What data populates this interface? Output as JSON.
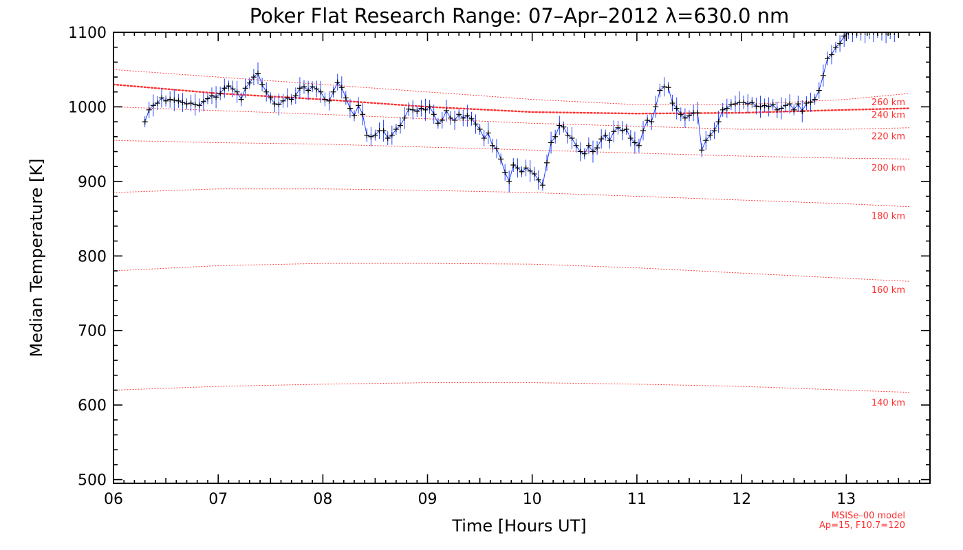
{
  "chart_data": {
    "type": "line",
    "title": "Poker Flat Research Range: 07–Apr–2012 λ=630.0 nm",
    "xlabel": "Time [Hours UT]",
    "ylabel": "Median Temperature [K]",
    "xlim": [
      6.0,
      13.8
    ],
    "ylim": [
      495,
      1100
    ],
    "x_ticks": [
      6,
      7,
      8,
      9,
      10,
      11,
      12,
      13
    ],
    "x_tick_labels": [
      "06",
      "07",
      "08",
      "09",
      "10",
      "11",
      "12",
      "13"
    ],
    "y_ticks": [
      500,
      600,
      700,
      800,
      900,
      1000,
      1100
    ],
    "y_tick_labels": [
      "500",
      "600",
      "700",
      "800",
      "900",
      "1000",
      "1100"
    ],
    "grid": false,
    "colors": {
      "data_line": "#2040ff",
      "markers": "#000000",
      "model": "#ff3030"
    },
    "series": [
      {
        "name": "",
        "points": [
          [
            6.3,
            980
          ],
          [
            6.34,
            996
          ],
          [
            6.38,
            1002
          ],
          [
            6.42,
            1005
          ],
          [
            6.46,
            1012
          ],
          [
            6.5,
            1008
          ],
          [
            6.54,
            1010
          ],
          [
            6.58,
            1009
          ],
          [
            6.62,
            1008
          ],
          [
            6.66,
            1006
          ],
          [
            6.7,
            1004
          ],
          [
            6.74,
            1005
          ],
          [
            6.78,
            1003
          ],
          [
            6.82,
            1002
          ],
          [
            6.86,
            1007
          ],
          [
            6.9,
            1011
          ],
          [
            6.94,
            1015
          ],
          [
            6.98,
            1013
          ],
          [
            7.02,
            1018
          ],
          [
            7.06,
            1025
          ],
          [
            7.1,
            1028
          ],
          [
            7.14,
            1024
          ],
          [
            7.18,
            1020
          ],
          [
            7.22,
            1010
          ],
          [
            7.26,
            1025
          ],
          [
            7.3,
            1032
          ],
          [
            7.34,
            1040
          ],
          [
            7.38,
            1045
          ],
          [
            7.42,
            1030
          ],
          [
            7.46,
            1020
          ],
          [
            7.5,
            1012
          ],
          [
            7.54,
            1004
          ],
          [
            7.58,
            1003
          ],
          [
            7.62,
            1008
          ],
          [
            7.66,
            1012
          ],
          [
            7.7,
            1010
          ],
          [
            7.74,
            1015
          ],
          [
            7.78,
            1025
          ],
          [
            7.82,
            1027
          ],
          [
            7.86,
            1022
          ],
          [
            7.9,
            1027
          ],
          [
            7.94,
            1024
          ],
          [
            7.98,
            1020
          ],
          [
            8.02,
            1010
          ],
          [
            8.06,
            1008
          ],
          [
            8.1,
            1020
          ],
          [
            8.14,
            1033
          ],
          [
            8.18,
            1026
          ],
          [
            8.22,
            1012
          ],
          [
            8.26,
            998
          ],
          [
            8.3,
            988
          ],
          [
            8.34,
            1002
          ],
          [
            8.38,
            990
          ],
          [
            8.42,
            962
          ],
          [
            8.46,
            960
          ],
          [
            8.5,
            962
          ],
          [
            8.54,
            968
          ],
          [
            8.58,
            968
          ],
          [
            8.62,
            958
          ],
          [
            8.66,
            962
          ],
          [
            8.7,
            970
          ],
          [
            8.74,
            975
          ],
          [
            8.78,
            985
          ],
          [
            8.82,
            997
          ],
          [
            8.86,
            996
          ],
          [
            8.9,
            994
          ],
          [
            8.94,
            998
          ],
          [
            8.98,
            996
          ],
          [
            9.02,
            1000
          ],
          [
            9.06,
            990
          ],
          [
            9.1,
            978
          ],
          [
            9.14,
            982
          ],
          [
            9.18,
            995
          ],
          [
            9.22,
            985
          ],
          [
            9.26,
            982
          ],
          [
            9.3,
            990
          ],
          [
            9.34,
            985
          ],
          [
            9.38,
            988
          ],
          [
            9.42,
            984
          ],
          [
            9.46,
            977
          ],
          [
            9.5,
            970
          ],
          [
            9.54,
            958
          ],
          [
            9.58,
            965
          ],
          [
            9.62,
            948
          ],
          [
            9.66,
            944
          ],
          [
            9.7,
            930
          ],
          [
            9.74,
            912
          ],
          [
            9.78,
            900
          ],
          [
            9.82,
            922
          ],
          [
            9.86,
            918
          ],
          [
            9.9,
            913
          ],
          [
            9.94,
            918
          ],
          [
            9.98,
            914
          ],
          [
            10.02,
            910
          ],
          [
            10.06,
            902
          ],
          [
            10.1,
            895
          ],
          [
            10.14,
            925
          ],
          [
            10.18,
            952
          ],
          [
            10.22,
            960
          ],
          [
            10.26,
            975
          ],
          [
            10.3,
            973
          ],
          [
            10.34,
            962
          ],
          [
            10.38,
            958
          ],
          [
            10.42,
            948
          ],
          [
            10.46,
            940
          ],
          [
            10.5,
            937
          ],
          [
            10.54,
            948
          ],
          [
            10.58,
            940
          ],
          [
            10.62,
            945
          ],
          [
            10.66,
            957
          ],
          [
            10.7,
            962
          ],
          [
            10.74,
            955
          ],
          [
            10.78,
            967
          ],
          [
            10.82,
            972
          ],
          [
            10.86,
            968
          ],
          [
            10.9,
            970
          ],
          [
            10.94,
            958
          ],
          [
            10.98,
            952
          ],
          [
            11.02,
            948
          ],
          [
            11.06,
            968
          ],
          [
            11.1,
            982
          ],
          [
            11.14,
            980
          ],
          [
            11.18,
            1000
          ],
          [
            11.22,
            1022
          ],
          [
            11.26,
            1027
          ],
          [
            11.3,
            1026
          ],
          [
            11.34,
            1005
          ],
          [
            11.38,
            998
          ],
          [
            11.42,
            990
          ],
          [
            11.46,
            985
          ],
          [
            11.5,
            988
          ],
          [
            11.54,
            992
          ],
          [
            11.58,
            992
          ],
          [
            11.62,
            942
          ],
          [
            11.66,
            955
          ],
          [
            11.7,
            962
          ],
          [
            11.74,
            968
          ],
          [
            11.78,
            980
          ],
          [
            11.82,
            996
          ],
          [
            11.86,
            998
          ],
          [
            11.9,
            1003
          ],
          [
            11.94,
            1004
          ],
          [
            11.98,
            1006
          ],
          [
            12.02,
            1006
          ],
          [
            12.06,
            1004
          ],
          [
            12.1,
            1006
          ],
          [
            12.14,
            1001
          ],
          [
            12.18,
            1000
          ],
          [
            12.22,
            1002
          ],
          [
            12.26,
            1000
          ],
          [
            12.3,
            1003
          ],
          [
            12.34,
            996
          ],
          [
            12.38,
            998
          ],
          [
            12.42,
            1002
          ],
          [
            12.46,
            1004
          ],
          [
            12.5,
            996
          ],
          [
            12.54,
            1004
          ],
          [
            12.58,
            994
          ],
          [
            12.62,
            1005
          ],
          [
            12.66,
            1006
          ],
          [
            12.7,
            1010
          ],
          [
            12.74,
            1022
          ],
          [
            12.78,
            1042
          ],
          [
            12.82,
            1065
          ],
          [
            12.86,
            1070
          ],
          [
            12.9,
            1080
          ],
          [
            12.94,
            1085
          ],
          [
            12.98,
            1095
          ],
          [
            13.02,
            1100
          ],
          [
            13.06,
            1100
          ],
          [
            13.1,
            1100
          ],
          [
            13.14,
            1100
          ],
          [
            13.18,
            1100
          ],
          [
            13.22,
            1100
          ],
          [
            13.26,
            1100
          ],
          [
            13.3,
            1100
          ],
          [
            13.34,
            1100
          ],
          [
            13.38,
            1100
          ],
          [
            13.42,
            1100
          ],
          [
            13.46,
            1100
          ],
          [
            13.5,
            1100
          ]
        ]
      }
    ],
    "model_curves": [
      {
        "label": "260 km",
        "thick": true,
        "points": [
          [
            6.0,
            1030
          ],
          [
            7.0,
            1018
          ],
          [
            8.0,
            1010
          ],
          [
            9.0,
            1000
          ],
          [
            10.0,
            993
          ],
          [
            11.0,
            991
          ],
          [
            12.0,
            992
          ],
          [
            12.5,
            994
          ],
          [
            13.0,
            996
          ],
          [
            13.6,
            998
          ]
        ]
      },
      {
        "label": "240 km",
        "thick": false,
        "points": [
          [
            6.0,
            1050
          ],
          [
            7.0,
            1040
          ],
          [
            8.0,
            1030
          ],
          [
            9.0,
            1020
          ],
          [
            10.0,
            1010
          ],
          [
            11.0,
            1003
          ],
          [
            12.0,
            1003
          ],
          [
            13.0,
            1010
          ],
          [
            13.6,
            1018
          ]
        ]
      },
      {
        "label": "220 km",
        "thick": false,
        "points": [
          [
            6.0,
            1000
          ],
          [
            7.0,
            995
          ],
          [
            8.0,
            990
          ],
          [
            9.0,
            984
          ],
          [
            10.0,
            978
          ],
          [
            11.0,
            974
          ],
          [
            12.0,
            970
          ],
          [
            13.0,
            970
          ],
          [
            13.6,
            972
          ]
        ]
      },
      {
        "label": "200 km",
        "thick": false,
        "points": [
          [
            6.0,
            955
          ],
          [
            7.0,
            952
          ],
          [
            8.0,
            950
          ],
          [
            9.0,
            946
          ],
          [
            10.0,
            942
          ],
          [
            11.0,
            938
          ],
          [
            12.0,
            934
          ],
          [
            13.0,
            931
          ],
          [
            13.6,
            930
          ]
        ]
      },
      {
        "label": "180 km",
        "thick": false,
        "points": [
          [
            6.0,
            885
          ],
          [
            7.0,
            890
          ],
          [
            8.0,
            890
          ],
          [
            9.0,
            888
          ],
          [
            10.0,
            885
          ],
          [
            11.0,
            880
          ],
          [
            12.0,
            875
          ],
          [
            13.0,
            870
          ],
          [
            13.6,
            866
          ]
        ]
      },
      {
        "label": "160 km",
        "thick": false,
        "points": [
          [
            6.0,
            780
          ],
          [
            7.0,
            787
          ],
          [
            8.0,
            790
          ],
          [
            9.0,
            790
          ],
          [
            10.0,
            789
          ],
          [
            11.0,
            784
          ],
          [
            12.0,
            777
          ],
          [
            13.0,
            770
          ],
          [
            13.6,
            766
          ]
        ]
      },
      {
        "label": "140 km",
        "thick": false,
        "points": [
          [
            6.0,
            620
          ],
          [
            7.0,
            625
          ],
          [
            8.0,
            628
          ],
          [
            9.0,
            630
          ],
          [
            10.0,
            630
          ],
          [
            11.0,
            628
          ],
          [
            12.0,
            625
          ],
          [
            13.0,
            620
          ],
          [
            13.6,
            617
          ]
        ]
      }
    ],
    "model_label_values": [
      1007,
      990,
      961,
      919,
      854,
      755,
      604
    ],
    "annotation": [
      "MSISe–00 model",
      "Ap=15, F10.7=120"
    ]
  }
}
